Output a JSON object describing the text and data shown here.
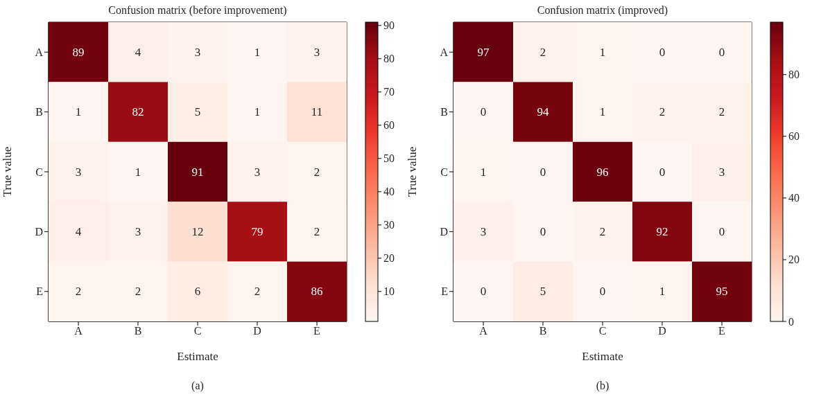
{
  "chart_data": [
    {
      "type": "heatmap",
      "title": "Confusion matrix (before improvement)",
      "xlabel": "Estimate",
      "ylabel": "True value",
      "categories": [
        "A",
        "B",
        "C",
        "D",
        "E"
      ],
      "y_categories": [
        "A",
        "B",
        "C",
        "D",
        "E"
      ],
      "cells": [
        [
          89,
          4,
          3,
          1,
          3
        ],
        [
          1,
          82,
          5,
          1,
          11
        ],
        [
          3,
          1,
          91,
          3,
          2
        ],
        [
          4,
          3,
          12,
          79,
          2
        ],
        [
          2,
          2,
          6,
          2,
          86
        ]
      ],
      "clim": [
        1,
        91
      ],
      "cticks": [
        10,
        20,
        30,
        40,
        50,
        60,
        70,
        80,
        90
      ],
      "data_labels": true,
      "annotations": [
        "(a)"
      ]
    },
    {
      "type": "heatmap",
      "title": "Confusion matrix (improved)",
      "xlabel": "Estimate",
      "ylabel": "True value",
      "categories": [
        "A",
        "B",
        "C",
        "D",
        "E"
      ],
      "y_categories": [
        "A",
        "B",
        "C",
        "D",
        "E"
      ],
      "cells": [
        [
          97,
          2,
          1,
          0,
          0
        ],
        [
          0,
          94,
          1,
          2,
          2
        ],
        [
          1,
          0,
          96,
          0,
          3
        ],
        [
          3,
          0,
          2,
          92,
          0
        ],
        [
          0,
          5,
          0,
          1,
          95
        ]
      ],
      "clim": [
        0,
        97
      ],
      "cticks": [
        0,
        20,
        40,
        60,
        80
      ],
      "data_labels": true,
      "annotations": [
        "(b)"
      ]
    }
  ]
}
